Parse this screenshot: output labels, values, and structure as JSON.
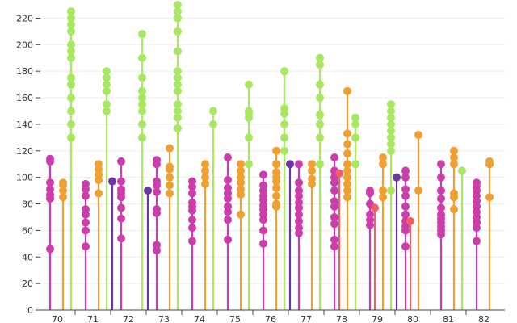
{
  "chart_data": {
    "type": "scatter",
    "title": "",
    "xlabel": "",
    "ylabel": "",
    "ylim": [
      0,
      230
    ],
    "y_ticks": [
      0,
      20,
      40,
      60,
      80,
      100,
      120,
      140,
      160,
      180,
      200,
      220
    ],
    "categories": [
      "70",
      "71",
      "72",
      "73",
      "74",
      "75",
      "76",
      "77",
      "78",
      "79",
      "80",
      "81",
      "82"
    ],
    "grid": true,
    "legend": "none",
    "series_colors": {
      "magenta": "#cc3dab",
      "purple": "#6b35a5",
      "orange": "#f0a030",
      "green": "#a8e860",
      "coral": "#f25e63"
    },
    "stems": [
      {
        "category": "70",
        "color": "magenta",
        "values": [
          46,
          84,
          87,
          91,
          96,
          112,
          114
        ]
      },
      {
        "category": "70",
        "color": "orange",
        "values": [
          85,
          90,
          94,
          96
        ]
      },
      {
        "category": "70",
        "color": "green",
        "values": [
          130,
          140,
          150,
          160,
          170,
          175,
          190,
          195,
          200,
          210,
          215,
          220,
          225
        ]
      },
      {
        "category": "71",
        "color": "magenta",
        "values": [
          48,
          60,
          66,
          72,
          76,
          86,
          91,
          95
        ]
      },
      {
        "category": "71",
        "color": "orange",
        "values": [
          88,
          98,
          102,
          106,
          110
        ]
      },
      {
        "category": "71",
        "color": "green",
        "values": [
          150,
          155,
          165,
          170,
          175,
          180
        ]
      },
      {
        "category": "72",
        "color": "purple",
        "values": [
          97
        ]
      },
      {
        "category": "72",
        "color": "magenta",
        "values": [
          54,
          69,
          77,
          85,
          88,
          91,
          97,
          112
        ]
      },
      {
        "category": "72",
        "color": "green",
        "values": [
          130,
          140,
          150,
          155,
          160,
          165,
          175,
          190,
          208
        ]
      },
      {
        "category": "73",
        "color": "purple",
        "values": [
          90
        ]
      },
      {
        "category": "73",
        "color": "magenta",
        "values": [
          45,
          49,
          73,
          76,
          89,
          94,
          97,
          110,
          113
        ]
      },
      {
        "category": "73",
        "color": "orange",
        "values": [
          88,
          94,
          100,
          106,
          108,
          122
        ]
      },
      {
        "category": "73",
        "color": "green",
        "values": [
          137,
          145,
          150,
          155,
          165,
          170,
          175,
          180,
          195,
          210,
          220,
          225,
          230
        ]
      },
      {
        "category": "74",
        "color": "magenta",
        "values": [
          52,
          62,
          68,
          75,
          78,
          81,
          88,
          93,
          97
        ]
      },
      {
        "category": "74",
        "color": "orange",
        "values": [
          95,
          100,
          105,
          110
        ]
      },
      {
        "category": "74",
        "color": "green",
        "values": [
          140,
          150
        ]
      },
      {
        "category": "75",
        "color": "magenta",
        "values": [
          53,
          68,
          74,
          78,
          84,
          88,
          92,
          98,
          115
        ]
      },
      {
        "category": "75",
        "color": "orange",
        "values": [
          72,
          87,
          91,
          96,
          100,
          105,
          110
        ]
      },
      {
        "category": "75",
        "color": "green",
        "values": [
          110,
          130,
          145,
          148,
          150,
          170
        ]
      },
      {
        "category": "76",
        "color": "magenta",
        "values": [
          50,
          60,
          68,
          72,
          76,
          79,
          83,
          86,
          90,
          94,
          102
        ]
      },
      {
        "category": "76",
        "color": "orange",
        "values": [
          78,
          80,
          86,
          92,
          97,
          100,
          104,
          110,
          120
        ]
      },
      {
        "category": "76",
        "color": "green",
        "values": [
          120,
          130,
          140,
          148,
          152,
          180
        ]
      },
      {
        "category": "77",
        "color": "purple",
        "values": [
          110
        ]
      },
      {
        "category": "77",
        "color": "magenta",
        "values": [
          58,
          62,
          67,
          72,
          77,
          81,
          86,
          90,
          96,
          110
        ]
      },
      {
        "category": "77",
        "color": "orange",
        "values": [
          95,
          99,
          105,
          110
        ]
      },
      {
        "category": "77",
        "color": "green",
        "values": [
          110,
          130,
          140,
          147,
          160,
          170,
          185,
          190
        ]
      },
      {
        "category": "78",
        "color": "magenta",
        "values": [
          48,
          53,
          65,
          70,
          78,
          82,
          90,
          96,
          100,
          105,
          115
        ]
      },
      {
        "category": "78",
        "color": "coral",
        "values": [
          103
        ]
      },
      {
        "category": "78",
        "color": "orange",
        "values": [
          85,
          90,
          95,
          100,
          105,
          110,
          118,
          125,
          133,
          165
        ]
      },
      {
        "category": "78",
        "color": "green",
        "values": [
          110,
          130,
          140,
          145
        ]
      },
      {
        "category": "79",
        "color": "magenta",
        "values": [
          64,
          68,
          72,
          80,
          88,
          90
        ]
      },
      {
        "category": "79",
        "color": "coral",
        "values": [
          77
        ]
      },
      {
        "category": "79",
        "color": "orange",
        "values": [
          85,
          90,
          110,
          115
        ]
      },
      {
        "category": "79",
        "color": "green",
        "values": [
          90,
          120,
          125,
          130,
          135,
          140,
          145,
          150,
          155
        ]
      },
      {
        "category": "80",
        "color": "purple",
        "values": [
          100
        ]
      },
      {
        "category": "80",
        "color": "magenta",
        "values": [
          48,
          60,
          63,
          67,
          72,
          78,
          86,
          91,
          100,
          105
        ]
      },
      {
        "category": "80",
        "color": "coral",
        "values": [
          67
        ]
      },
      {
        "category": "80",
        "color": "orange",
        "values": [
          90,
          132
        ]
      },
      {
        "category": "81",
        "color": "magenta",
        "values": [
          57,
          60,
          63,
          66,
          69,
          72,
          77,
          84,
          90,
          100,
          110
        ]
      },
      {
        "category": "81",
        "color": "orange",
        "values": [
          76,
          85,
          88,
          110,
          115,
          120
        ]
      },
      {
        "category": "81",
        "color": "green",
        "values": [
          105
        ]
      },
      {
        "category": "82",
        "color": "magenta",
        "values": [
          52,
          62,
          66,
          70,
          74,
          78,
          82,
          86,
          90,
          93,
          96
        ]
      },
      {
        "category": "82",
        "color": "orange",
        "values": [
          85,
          110,
          112
        ]
      }
    ]
  }
}
